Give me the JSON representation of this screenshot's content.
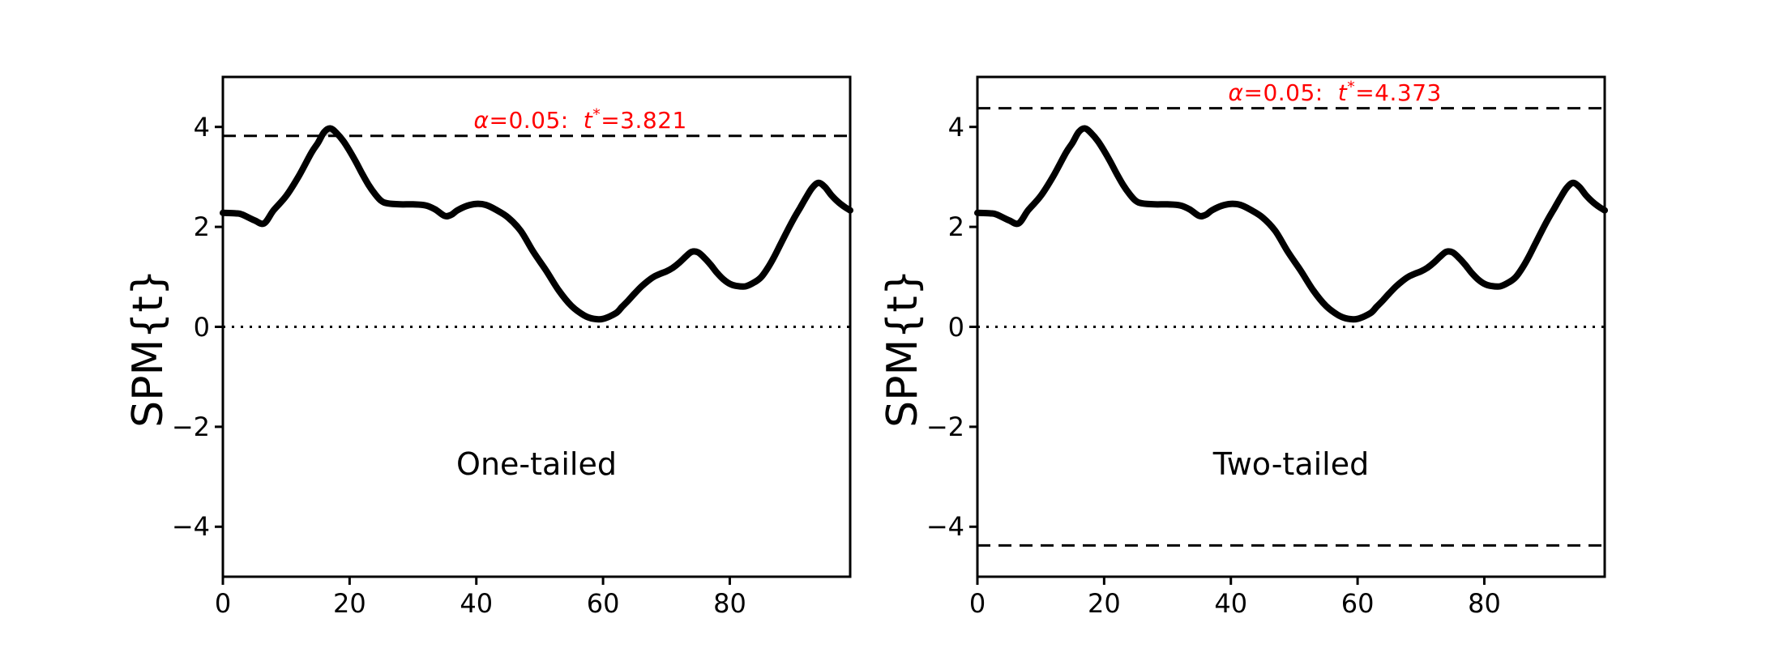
{
  "figure": {
    "background": "#ffffff"
  },
  "chart_data": [
    {
      "type": "line",
      "panel": "left",
      "annotation": "One-tailed",
      "ylabel": "SPM{t}",
      "xlim": [
        0,
        99
      ],
      "ylim": [
        -5,
        5
      ],
      "xticks": [
        0,
        20,
        40,
        60,
        80
      ],
      "xtick_labels": [
        "0",
        "20",
        "40",
        "60",
        "80"
      ],
      "yticks": [
        4,
        2,
        0,
        -2,
        -4
      ],
      "ytick_labels": [
        "4",
        "2",
        "0",
        "−2",
        "−4"
      ],
      "grid": false,
      "zero_line": 0,
      "threshold": 3.821,
      "two_tailed": false,
      "threshold_label": {
        "alpha_symbol": "α",
        "alpha_text": "=0.05:",
        "t_symbol": "t",
        "star": "*",
        "value_text": "=3.821"
      },
      "threshold_label_color": "#ff0000",
      "line_color": "#000000",
      "cluster_fill_color": "#cccccc",
      "x": [
        0,
        2,
        3,
        5,
        6.5,
        8,
        10,
        12,
        14,
        15,
        16,
        17,
        18,
        19,
        20,
        21,
        22,
        23,
        24,
        25,
        26,
        28,
        30,
        32,
        33.5,
        35,
        36,
        37,
        38.5,
        40,
        41.5,
        43,
        45,
        47,
        49,
        51,
        53,
        55,
        57,
        58.5,
        60,
        62,
        63,
        64,
        65,
        66,
        67,
        68,
        69,
        70,
        71,
        72,
        73,
        74,
        75,
        76,
        77,
        78,
        79,
        80,
        81,
        82.5,
        84,
        85,
        86,
        87,
        88,
        89,
        90,
        91,
        92,
        93,
        94,
        95,
        96,
        97,
        98,
        99
      ],
      "y": [
        2.28,
        2.27,
        2.25,
        2.13,
        2.07,
        2.33,
        2.62,
        3.02,
        3.49,
        3.68,
        3.9,
        3.97,
        3.87,
        3.72,
        3.52,
        3.3,
        3.06,
        2.84,
        2.66,
        2.52,
        2.47,
        2.45,
        2.45,
        2.43,
        2.35,
        2.22,
        2.24,
        2.33,
        2.42,
        2.46,
        2.44,
        2.35,
        2.19,
        1.92,
        1.5,
        1.13,
        0.73,
        0.42,
        0.23,
        0.16,
        0.16,
        0.27,
        0.4,
        0.53,
        0.67,
        0.8,
        0.91,
        1.0,
        1.06,
        1.11,
        1.18,
        1.28,
        1.4,
        1.5,
        1.49,
        1.38,
        1.24,
        1.08,
        0.95,
        0.86,
        0.82,
        0.81,
        0.9,
        1.0,
        1.18,
        1.4,
        1.65,
        1.9,
        2.14,
        2.36,
        2.58,
        2.78,
        2.88,
        2.8,
        2.64,
        2.51,
        2.41,
        2.33
      ]
    },
    {
      "type": "line",
      "panel": "right",
      "annotation": "Two-tailed",
      "ylabel": "SPM{t}",
      "xlim": [
        0,
        99
      ],
      "ylim": [
        -5,
        5
      ],
      "xticks": [
        0,
        20,
        40,
        60,
        80
      ],
      "xtick_labels": [
        "0",
        "20",
        "40",
        "60",
        "80"
      ],
      "yticks": [
        4,
        2,
        0,
        -2,
        -4
      ],
      "ytick_labels": [
        "4",
        "2",
        "0",
        "−2",
        "−4"
      ],
      "grid": false,
      "zero_line": 0,
      "threshold": 4.373,
      "two_tailed": true,
      "threshold_label": {
        "alpha_symbol": "α",
        "alpha_text": "=0.05:",
        "t_symbol": "t",
        "star": "*",
        "value_text": "=4.373"
      },
      "threshold_label_color": "#ff0000",
      "line_color": "#000000",
      "cluster_fill_color": "#cccccc",
      "x": [
        0,
        2,
        3,
        5,
        6.5,
        8,
        10,
        12,
        14,
        15,
        16,
        17,
        18,
        19,
        20,
        21,
        22,
        23,
        24,
        25,
        26,
        28,
        30,
        32,
        33.5,
        35,
        36,
        37,
        38.5,
        40,
        41.5,
        43,
        45,
        47,
        49,
        51,
        53,
        55,
        57,
        58.5,
        60,
        62,
        63,
        64,
        65,
        66,
        67,
        68,
        69,
        70,
        71,
        72,
        73,
        74,
        75,
        76,
        77,
        78,
        79,
        80,
        81,
        82.5,
        84,
        85,
        86,
        87,
        88,
        89,
        90,
        91,
        92,
        93,
        94,
        95,
        96,
        97,
        98,
        99
      ],
      "y": [
        2.28,
        2.27,
        2.25,
        2.13,
        2.07,
        2.33,
        2.62,
        3.02,
        3.49,
        3.68,
        3.9,
        3.97,
        3.87,
        3.72,
        3.52,
        3.3,
        3.06,
        2.84,
        2.66,
        2.52,
        2.47,
        2.45,
        2.45,
        2.43,
        2.35,
        2.22,
        2.24,
        2.33,
        2.42,
        2.46,
        2.44,
        2.35,
        2.19,
        1.92,
        1.5,
        1.13,
        0.73,
        0.42,
        0.23,
        0.16,
        0.16,
        0.27,
        0.4,
        0.53,
        0.67,
        0.8,
        0.91,
        1.0,
        1.06,
        1.11,
        1.18,
        1.28,
        1.4,
        1.5,
        1.49,
        1.38,
        1.24,
        1.08,
        0.95,
        0.86,
        0.82,
        0.81,
        0.9,
        1.0,
        1.18,
        1.4,
        1.65,
        1.9,
        2.14,
        2.36,
        2.58,
        2.78,
        2.88,
        2.8,
        2.64,
        2.51,
        2.41,
        2.33
      ]
    }
  ]
}
